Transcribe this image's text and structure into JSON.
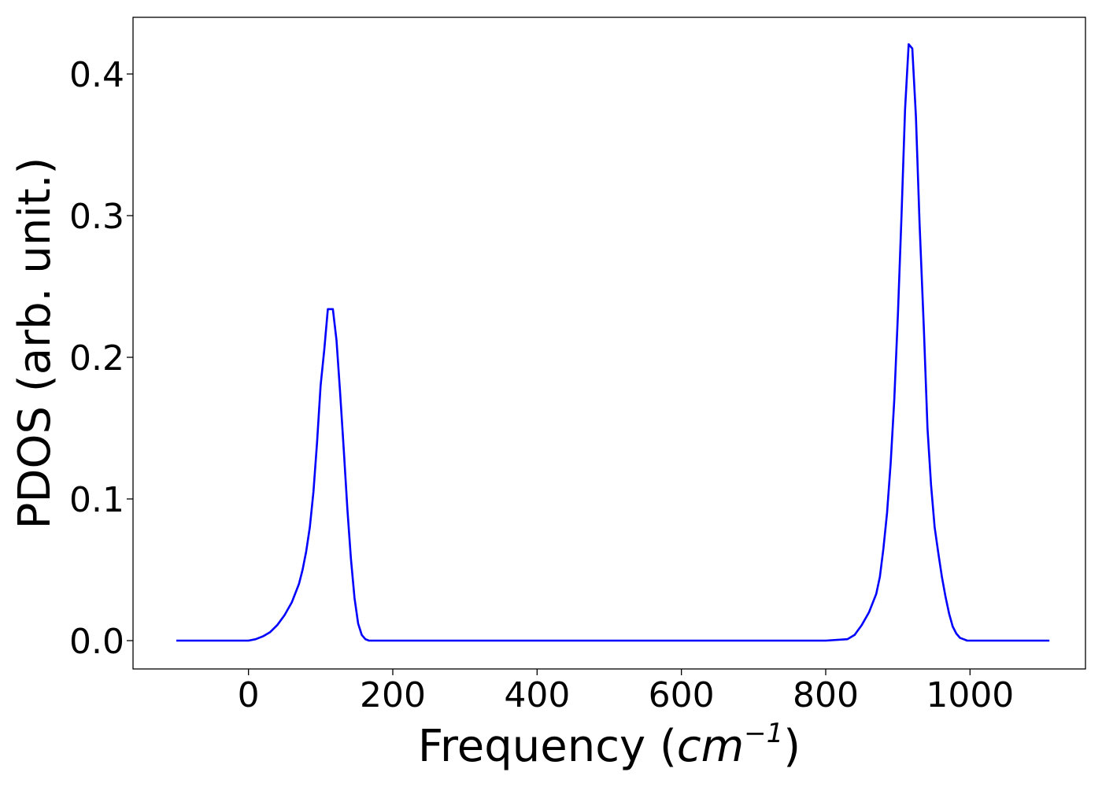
{
  "colors": {
    "line": "#0000ff",
    "axes": "#000000",
    "background": "#ffffff"
  },
  "chart_data": {
    "type": "line",
    "title": "",
    "xlabel": "Frequency (cm⁻¹)",
    "xlabel_parts": {
      "text": "Frequency (",
      "math_base": "cm",
      "math_sup": "−1",
      "close": ")"
    },
    "ylabel": "PDOS (arb. unit.)",
    "xlim": [
      -160,
      1160
    ],
    "ylim": [
      -0.02,
      0.44
    ],
    "xticks": [
      0,
      200,
      400,
      600,
      800,
      1000
    ],
    "xtick_labels": [
      "0",
      "200",
      "400",
      "600",
      "800",
      "1000"
    ],
    "yticks": [
      0.0,
      0.1,
      0.2,
      0.3,
      0.4
    ],
    "ytick_labels": [
      "0.0",
      "0.1",
      "0.2",
      "0.3",
      "0.4"
    ],
    "grid": false,
    "series": [
      {
        "color": "#0000ff",
        "x": [
          -100,
          -50,
          0,
          10,
          20,
          30,
          40,
          50,
          60,
          70,
          75,
          80,
          85,
          90,
          95,
          100,
          105,
          110,
          117,
          122,
          127,
          132,
          137,
          142,
          147,
          152,
          157,
          162,
          167,
          172,
          180,
          200,
          300,
          400,
          500,
          600,
          700,
          800,
          830,
          840,
          850,
          860,
          870,
          875,
          880,
          885,
          890,
          895,
          900,
          905,
          910,
          915,
          920,
          925,
          930,
          936,
          941,
          946,
          951,
          956,
          961,
          966,
          971,
          976,
          981,
          986,
          991,
          996,
          1001,
          1006,
          1011,
          1016,
          1021,
          1030,
          1050,
          1110
        ],
        "y": [
          0.0,
          0.0,
          0.0,
          0.001,
          0.003,
          0.006,
          0.011,
          0.018,
          0.027,
          0.04,
          0.05,
          0.063,
          0.08,
          0.105,
          0.14,
          0.18,
          0.205,
          0.234,
          0.234,
          0.212,
          0.175,
          0.135,
          0.093,
          0.058,
          0.03,
          0.012,
          0.004,
          0.001,
          0.0,
          0.0,
          0.0,
          0.0,
          0.0,
          0.0,
          0.0,
          0.0,
          0.0,
          0.0,
          0.001,
          0.004,
          0.011,
          0.02,
          0.033,
          0.045,
          0.065,
          0.09,
          0.125,
          0.17,
          0.23,
          0.3,
          0.375,
          0.421,
          0.418,
          0.37,
          0.295,
          0.22,
          0.15,
          0.11,
          0.08,
          0.062,
          0.045,
          0.031,
          0.019,
          0.01,
          0.005,
          0.002,
          0.001,
          0.0,
          0.0,
          0.0,
          0.0,
          0.0,
          0.0,
          0.0,
          0.0,
          0.0
        ]
      }
    ]
  }
}
